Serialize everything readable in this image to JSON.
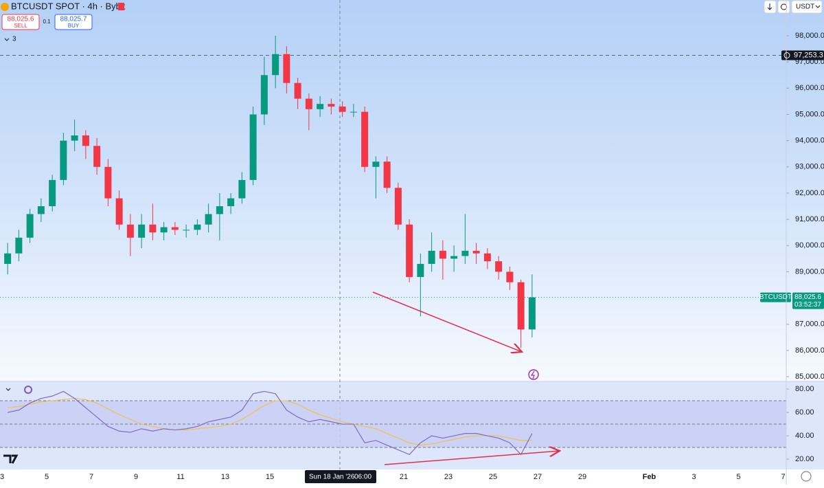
{
  "header": {
    "title": "BTCUSDT SPOT · 4h · Bybit",
    "sell_price": "88,025.6",
    "sell": "SELL",
    "spread": "0.1",
    "buy_price": "88,025.7",
    "buy": "BUY",
    "indicators_count": "3",
    "currency": "USDT"
  },
  "chart_data": [
    {
      "type": "candlestick",
      "series": [
        {
          "name": "BTCUSDT",
          "up_color": "#089981",
          "down_color": "#f23645",
          "open": [
            89300,
            89700,
            90300,
            91200,
            91500,
            92500,
            94000,
            94200,
            93800,
            93000,
            91800,
            90800,
            90300,
            90800,
            90500,
            90700,
            90600,
            90600,
            90800,
            91200,
            91500,
            91800,
            92500,
            95000,
            96500,
            97300,
            96200,
            95600,
            95200,
            95400,
            95300,
            95100,
            95100,
            93000,
            93200,
            92200,
            90800,
            88800,
            89300,
            89800,
            89500,
            89600,
            89800,
            89700,
            89400,
            89000,
            88600,
            86800
          ],
          "high": [
            90100,
            90600,
            91400,
            91800,
            92700,
            94300,
            94800,
            94400,
            94100,
            93300,
            92100,
            91200,
            91200,
            91600,
            90900,
            90900,
            90800,
            91000,
            91600,
            92000,
            92000,
            92800,
            95300,
            97200,
            98000,
            97600,
            96400,
            95800,
            95700,
            95600,
            95500,
            95400,
            95300,
            93400,
            93400,
            92400,
            91000,
            89700,
            90500,
            90200,
            90000,
            91200,
            90100,
            89900,
            89600,
            89200,
            88700,
            88900
          ],
          "low": [
            88900,
            89400,
            90100,
            90900,
            91300,
            92300,
            93600,
            93300,
            92700,
            91500,
            90600,
            89600,
            89900,
            90200,
            90200,
            90400,
            90300,
            90400,
            90500,
            90200,
            91200,
            91600,
            92300,
            94600,
            96000,
            95800,
            95200,
            94400,
            94900,
            95000,
            94900,
            94900,
            92800,
            91800,
            92000,
            90600,
            88600,
            87300,
            89000,
            88700,
            89000,
            89300,
            89300,
            89100,
            88700,
            88300,
            86100,
            86500
          ],
          "close": [
            89700,
            90300,
            91200,
            91500,
            92500,
            94000,
            94200,
            93800,
            93000,
            91800,
            90800,
            90300,
            90800,
            90500,
            90700,
            90600,
            90600,
            90800,
            91200,
            91500,
            91800,
            92500,
            95000,
            96500,
            97300,
            96200,
            95600,
            95200,
            95400,
            95300,
            95100,
            95100,
            93000,
            93200,
            92200,
            90800,
            88800,
            89300,
            89800,
            89500,
            89600,
            89800,
            89700,
            89400,
            89000,
            88600,
            86800,
            88025.6
          ]
        }
      ],
      "ylim": [
        84817,
        99363
      ],
      "yticks": [
        {
          "value": 98000,
          "label": "98,000.0"
        },
        {
          "value": 97000,
          "label": "97,000.0"
        },
        {
          "value": 96000,
          "label": "96,000.0"
        },
        {
          "value": 95000,
          "label": "95,000.0"
        },
        {
          "value": 94000,
          "label": "94,000.0"
        },
        {
          "value": 93000,
          "label": "93,000.0"
        },
        {
          "value": 92000,
          "label": "92,000.0"
        },
        {
          "value": 91000,
          "label": "91,000.0"
        },
        {
          "value": 90000,
          "label": "90,000.0"
        },
        {
          "value": 89000,
          "label": "89,000.0"
        },
        {
          "value": 88000,
          "label": "88,000.0"
        },
        {
          "value": 87000,
          "label": "87,000.0"
        },
        {
          "value": 86000,
          "label": "86,000.0"
        },
        {
          "value": 85000,
          "label": "85,000.0"
        }
      ],
      "high_marker": {
        "value": 97253.3,
        "label": "97,253.3"
      },
      "last_price": {
        "value": 88025.6,
        "label": "88,025.6"
      },
      "countdown": "03:52:37"
    },
    {
      "type": "line",
      "series": [
        {
          "color": "#7e6bc4",
          "values": [
            60,
            62,
            68,
            72,
            74,
            78,
            72,
            64,
            56,
            48,
            44,
            43,
            46,
            44,
            46,
            45,
            46,
            48,
            52,
            54,
            56,
            62,
            76,
            78,
            76,
            62,
            56,
            52,
            54,
            52,
            50,
            50,
            34,
            36,
            32,
            28,
            24,
            34,
            40,
            38,
            40,
            42,
            42,
            40,
            38,
            34,
            24,
            42
          ]
        },
        {
          "color": "#f2c14e",
          "values": [
            64,
            65,
            67,
            69,
            70,
            71,
            72,
            71,
            68,
            63,
            58,
            54,
            50,
            48,
            46,
            45,
            45,
            46,
            47,
            48,
            50,
            54,
            60,
            66,
            70,
            70,
            67,
            62,
            58,
            55,
            52,
            50,
            48,
            46,
            42,
            38,
            34,
            32,
            33,
            35,
            37,
            39,
            40,
            40,
            40,
            38,
            36,
            36
          ]
        }
      ],
      "ylim": [
        11.2,
        86.5
      ],
      "yticks": [
        {
          "value": 80,
          "label": "80.00"
        },
        {
          "value": 60,
          "label": "60.00"
        },
        {
          "value": 40,
          "label": "40.00"
        },
        {
          "value": 20,
          "label": "20.00"
        }
      ],
      "levels": [
        70,
        50,
        30
      ]
    }
  ],
  "time_axis": {
    "ticks": [
      "3",
      "5",
      "7",
      "9",
      "11",
      "13",
      "15",
      "21",
      "23",
      "25",
      "27",
      "29",
      "Feb",
      "3",
      "5",
      "7"
    ],
    "crosshair_date": "Sun 18 Jan '26",
    "crosshair_time": "06:00"
  }
}
